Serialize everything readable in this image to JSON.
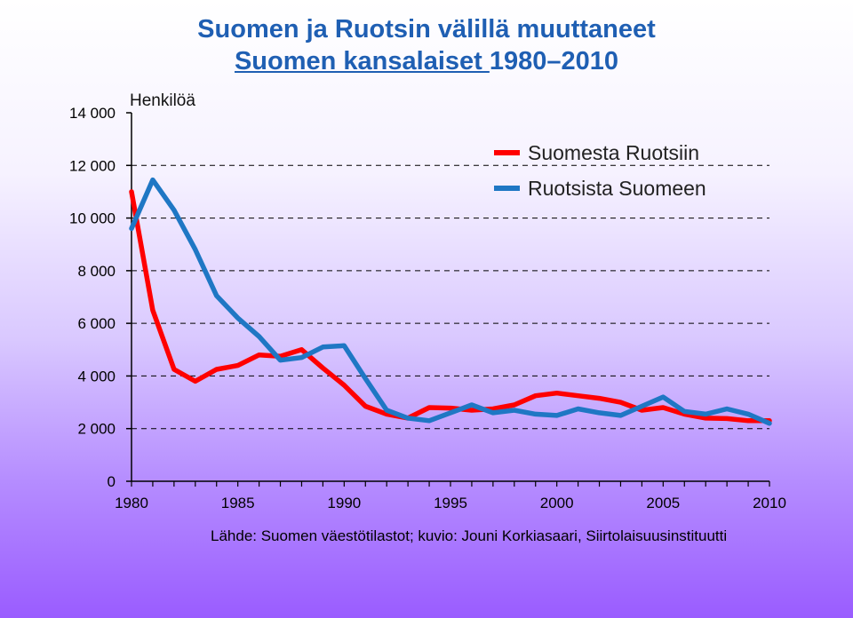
{
  "chart_data": {
    "type": "line",
    "title_line1": "Suomen ja Ruotsin välillä muuttaneet",
    "title_line2_underlined": "Suomen kansalaiset ",
    "title_line2_rest": "1980–2010",
    "ylabel": "Henkilöä",
    "xlabel": "",
    "xlim": [
      1980,
      2010
    ],
    "ylim": [
      0,
      14000
    ],
    "x_ticks": [
      1980,
      1985,
      1990,
      1995,
      2000,
      2005,
      2010
    ],
    "y_ticks": [
      0,
      2000,
      4000,
      6000,
      8000,
      10000,
      12000,
      14000
    ],
    "y_tick_labels": [
      "0",
      "2 000",
      "4 000",
      "6 000",
      "8 000",
      "10 000",
      "12 000",
      "14 000"
    ],
    "grid": "horizontal dashed",
    "legend": "top-right",
    "x": [
      1980,
      1981,
      1982,
      1983,
      1984,
      1985,
      1986,
      1987,
      1988,
      1989,
      1990,
      1991,
      1992,
      1993,
      1994,
      1995,
      1996,
      1997,
      1998,
      1999,
      2000,
      2001,
      2002,
      2003,
      2004,
      2005,
      2006,
      2007,
      2008,
      2009,
      2010
    ],
    "series": [
      {
        "name": "Suomesta Ruotsiin",
        "color": "#ff0000",
        "values": [
          11000,
          6500,
          4250,
          3800,
          4250,
          4400,
          4800,
          4750,
          5000,
          4300,
          3650,
          2850,
          2550,
          2400,
          2800,
          2780,
          2700,
          2750,
          2900,
          3250,
          3350,
          3250,
          3150,
          3000,
          2700,
          2800,
          2550,
          2400,
          2380,
          2300,
          2300
        ]
      },
      {
        "name": "Ruotsista Suomeen",
        "color": "#1f77c4",
        "values": [
          9600,
          11450,
          10300,
          8800,
          7050,
          6200,
          5500,
          4600,
          4700,
          5100,
          5150,
          3900,
          2700,
          2400,
          2300,
          2600,
          2900,
          2600,
          2700,
          2550,
          2500,
          2750,
          2600,
          2500,
          2850,
          3200,
          2650,
          2550,
          2750,
          2550,
          2200
        ]
      }
    ],
    "source": "Lähde: Suomen väestötilastot; kuvio: Jouni  Korkiasaari, Siirtolaisuusinstituutti"
  }
}
